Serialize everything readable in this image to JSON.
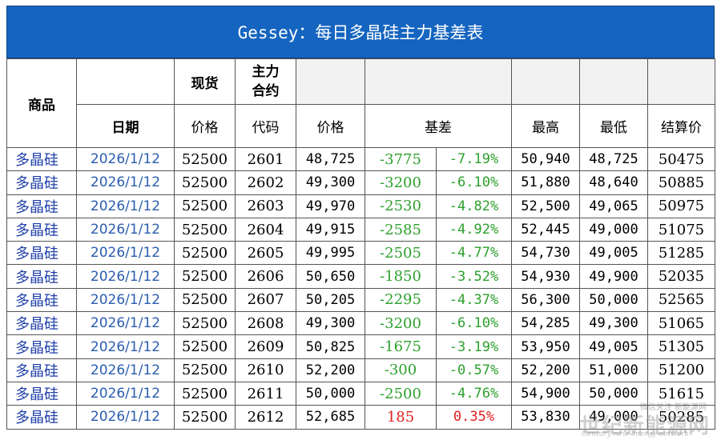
{
  "title": "Gessey：每日多晶硅主力基差表",
  "header": {
    "product": "商品",
    "spot": "现货",
    "main_contract_line1": "主力",
    "main_contract_line2": "合约",
    "date": "日期",
    "price": "价格",
    "code": "代码",
    "futures_price": "价格",
    "basis": "基差",
    "high": "最高",
    "low": "最低",
    "settle": "结算价"
  },
  "rows": [
    {
      "product": "多晶硅",
      "date": "2026/1/12",
      "spot": "52500",
      "code": "2601",
      "price": "48,725",
      "basis": "-3775",
      "basis_pct": "-7.19%",
      "high": "50,940",
      "low": "48,725",
      "settle": "50475",
      "sign": "neg"
    },
    {
      "product": "多晶硅",
      "date": "2026/1/12",
      "spot": "52500",
      "code": "2602",
      "price": "49,300",
      "basis": "-3200",
      "basis_pct": "-6.10%",
      "high": "51,880",
      "low": "48,640",
      "settle": "50885",
      "sign": "neg"
    },
    {
      "product": "多晶硅",
      "date": "2026/1/12",
      "spot": "52500",
      "code": "2603",
      "price": "49,970",
      "basis": "-2530",
      "basis_pct": "-4.82%",
      "high": "52,500",
      "low": "49,065",
      "settle": "50975",
      "sign": "neg"
    },
    {
      "product": "多晶硅",
      "date": "2026/1/12",
      "spot": "52500",
      "code": "2604",
      "price": "49,915",
      "basis": "-2585",
      "basis_pct": "-4.92%",
      "high": "52,445",
      "low": "49,000",
      "settle": "51075",
      "sign": "neg"
    },
    {
      "product": "多晶硅",
      "date": "2026/1/12",
      "spot": "52500",
      "code": "2605",
      "price": "49,995",
      "basis": "-2505",
      "basis_pct": "-4.77%",
      "high": "54,730",
      "low": "49,005",
      "settle": "51285",
      "sign": "neg"
    },
    {
      "product": "多晶硅",
      "date": "2026/1/12",
      "spot": "52500",
      "code": "2606",
      "price": "50,650",
      "basis": "-1850",
      "basis_pct": "-3.52%",
      "high": "54,930",
      "low": "49,900",
      "settle": "52035",
      "sign": "neg"
    },
    {
      "product": "多晶硅",
      "date": "2026/1/12",
      "spot": "52500",
      "code": "2607",
      "price": "50,205",
      "basis": "-2295",
      "basis_pct": "-4.37%",
      "high": "56,300",
      "low": "50,000",
      "settle": "52565",
      "sign": "neg"
    },
    {
      "product": "多晶硅",
      "date": "2026/1/12",
      "spot": "52500",
      "code": "2608",
      "price": "49,300",
      "basis": "-3200",
      "basis_pct": "-6.10%",
      "high": "54,285",
      "low": "49,300",
      "settle": "51065",
      "sign": "neg"
    },
    {
      "product": "多晶硅",
      "date": "2026/1/12",
      "spot": "52500",
      "code": "2609",
      "price": "50,825",
      "basis": "-1675",
      "basis_pct": "-3.19%",
      "high": "53,950",
      "low": "49,005",
      "settle": "51305",
      "sign": "neg"
    },
    {
      "product": "多晶硅",
      "date": "2026/1/12",
      "spot": "52500",
      "code": "2610",
      "price": "52,200",
      "basis": "-300",
      "basis_pct": "-0.57%",
      "high": "52,200",
      "low": "51,000",
      "settle": "51200",
      "sign": "neg"
    },
    {
      "product": "多晶硅",
      "date": "2026/1/12",
      "spot": "52500",
      "code": "2611",
      "price": "50,000",
      "basis": "-2500",
      "basis_pct": "-4.76%",
      "high": "54,900",
      "low": "50,000",
      "settle": "51615",
      "sign": "neg"
    },
    {
      "product": "多晶硅",
      "date": "2026/1/12",
      "spot": "52500",
      "code": "2612",
      "price": "52,685",
      "basis": "185",
      "basis_pct": "0.35%",
      "high": "53,830",
      "low": "49,000",
      "settle": "50285",
      "sign": "pos"
    }
  ],
  "colors": {
    "title_bg": "#1565c0",
    "negative": "#2ca02c",
    "positive": "#e0201f",
    "product_text": "#1f3fa8",
    "date_text": "#2a5db0"
  }
}
